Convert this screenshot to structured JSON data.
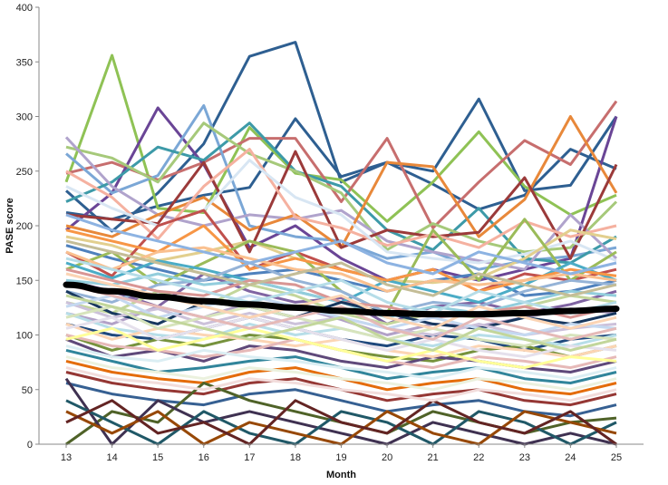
{
  "chart_data": {
    "type": "line",
    "xlabel": "Month",
    "ylabel": "PASE score",
    "ylim": [
      0,
      400
    ],
    "yticks": [
      0,
      50,
      100,
      150,
      200,
      250,
      300,
      350,
      400
    ],
    "categories": [
      "13",
      "14",
      "15",
      "16",
      "17",
      "18",
      "19",
      "20",
      "21",
      "22",
      "23",
      "24",
      "25"
    ],
    "grid": false,
    "legend": "none",
    "trend": {
      "values": [
        146,
        140,
        135,
        131,
        128,
        125,
        122,
        120,
        119,
        119,
        120,
        122,
        124
      ],
      "color": "#000000"
    },
    "series": [
      {
        "color": "#2e5f91",
        "values": [
          232,
          195,
          230,
          275,
          355,
          368,
          240,
          258,
          250,
          316,
          232,
          237,
          300
        ]
      },
      {
        "color": "#2e5f91",
        "values": [
          212,
          206,
          218,
          228,
          235,
          298,
          245,
          258,
          238,
          215,
          228,
          270,
          252
        ]
      },
      {
        "color": "#8fc255",
        "values": [
          240,
          356,
          216,
          212,
          290,
          248,
          242,
          204,
          240,
          286,
          236,
          210,
          228
        ]
      },
      {
        "color": "#c76e6e",
        "values": [
          248,
          258,
          242,
          258,
          280,
          280,
          222,
          280,
          198,
          240,
          278,
          256,
          314
        ]
      },
      {
        "color": "#6a4596",
        "values": [
          196,
          230,
          308,
          256,
          180,
          200,
          170,
          150,
          160,
          150,
          160,
          170,
          300
        ]
      },
      {
        "color": "#7ba7d6",
        "values": [
          266,
          230,
          246,
          310,
          200,
          190,
          186,
          170,
          176,
          160,
          168,
          172,
          180
        ]
      },
      {
        "color": "#3d9aa8",
        "values": [
          222,
          240,
          272,
          260,
          294,
          250,
          236,
          196,
          178,
          216,
          170,
          166,
          190
        ]
      },
      {
        "color": "#a6c97a",
        "values": [
          272,
          262,
          240,
          294,
          266,
          250,
          230,
          178,
          202,
          186,
          176,
          180,
          222
        ]
      },
      {
        "color": "#b0a3cc",
        "values": [
          281,
          236,
          210,
          200,
          210,
          206,
          214,
          186,
          176,
          168,
          160,
          210,
          170
        ]
      },
      {
        "color": "#e8883a",
        "values": [
          200,
          190,
          210,
          226,
          196,
          210,
          180,
          258,
          254,
          190,
          224,
          300,
          230
        ]
      },
      {
        "color": "#9b3a3a",
        "values": [
          210,
          206,
          202,
          258,
          176,
          268,
          180,
          196,
          190,
          194,
          244,
          170,
          256
        ]
      },
      {
        "color": "#f5b1a0",
        "values": [
          250,
          226,
          188,
          236,
          270,
          208,
          198,
          182,
          192,
          180,
          204,
          190,
          200
        ]
      },
      {
        "color": "#d8e6f3",
        "values": [
          236,
          216,
          200,
          214,
          260,
          226,
          210,
          176,
          170,
          166,
          174,
          186,
          168
        ]
      },
      {
        "color": "#e2cf8e",
        "values": [
          190,
          182,
          168,
          176,
          186,
          170,
          160,
          150,
          148,
          152,
          170,
          196,
          188
        ]
      },
      {
        "color": "#c0504d",
        "values": [
          176,
          154,
          200,
          214,
          160,
          176,
          160,
          150,
          160,
          140,
          156,
          150,
          160
        ]
      },
      {
        "color": "#4f81bd",
        "values": [
          182,
          170,
          160,
          150,
          156,
          160,
          150,
          140,
          150,
          156,
          136,
          140,
          150
        ]
      },
      {
        "color": "#9bbb59",
        "values": [
          160,
          176,
          146,
          166,
          186,
          176,
          140,
          120,
          196,
          150,
          206,
          150,
          176
        ]
      },
      {
        "color": "#8064a2",
        "values": [
          150,
          140,
          126,
          156,
          140,
          130,
          134,
          110,
          126,
          130,
          120,
          128,
          140
        ]
      },
      {
        "color": "#4bacc6",
        "values": [
          166,
          152,
          168,
          160,
          150,
          140,
          130,
          150,
          140,
          130,
          146,
          166,
          150
        ]
      },
      {
        "color": "#f79646",
        "values": [
          196,
          186,
          176,
          200,
          160,
          170,
          160,
          150,
          160,
          140,
          150,
          160,
          154
        ]
      },
      {
        "color": "#95b3d7",
        "values": [
          140,
          130,
          146,
          150,
          166,
          150,
          140,
          120,
          130,
          126,
          140,
          150,
          146
        ]
      },
      {
        "color": "#c3d69b",
        "values": [
          130,
          120,
          140,
          126,
          146,
          136,
          120,
          110,
          120,
          116,
          126,
          136,
          130
        ]
      },
      {
        "color": "#b2a1c7",
        "values": [
          120,
          110,
          126,
          116,
          130,
          126,
          114,
          100,
          110,
          108,
          116,
          124,
          120
        ]
      },
      {
        "color": "#92cddc",
        "values": [
          150,
          146,
          156,
          146,
          150,
          140,
          130,
          116,
          126,
          120,
          130,
          140,
          136
        ]
      },
      {
        "color": "#fac08f",
        "values": [
          176,
          160,
          176,
          180,
          170,
          160,
          156,
          140,
          150,
          146,
          150,
          156,
          150
        ]
      },
      {
        "color": "#d99694",
        "values": [
          160,
          150,
          140,
          136,
          150,
          146,
          130,
          126,
          116,
          120,
          126,
          116,
          126
        ]
      },
      {
        "color": "#1f497d",
        "values": [
          110,
          100,
          96,
          106,
          116,
          106,
          96,
          90,
          100,
          96,
          86,
          96,
          100
        ]
      },
      {
        "color": "#76923c",
        "values": [
          100,
          86,
          96,
          90,
          100,
          96,
          86,
          80,
          76,
          86,
          90,
          80,
          90
        ]
      },
      {
        "color": "#5f497a",
        "values": [
          96,
          80,
          86,
          76,
          90,
          86,
          76,
          70,
          80,
          76,
          70,
          66,
          76
        ]
      },
      {
        "color": "#31859b",
        "values": [
          86,
          76,
          66,
          70,
          76,
          80,
          70,
          60,
          66,
          70,
          60,
          56,
          66
        ]
      },
      {
        "color": "#e46c0a",
        "values": [
          76,
          66,
          60,
          56,
          66,
          70,
          60,
          50,
          56,
          60,
          50,
          46,
          56
        ]
      },
      {
        "color": "#953734",
        "values": [
          66,
          56,
          50,
          46,
          56,
          60,
          50,
          40,
          46,
          50,
          40,
          36,
          46
        ]
      },
      {
        "color": "#366092",
        "values": [
          56,
          46,
          40,
          36,
          46,
          50,
          40,
          30,
          36,
          40,
          30,
          26,
          36
        ]
      },
      {
        "color": "#4f6228",
        "values": [
          0,
          30,
          20,
          56,
          40,
          30,
          20,
          10,
          30,
          20,
          10,
          20,
          24
        ]
      },
      {
        "color": "#3f3151",
        "values": [
          60,
          0,
          40,
          20,
          30,
          20,
          10,
          0,
          20,
          10,
          0,
          10,
          0
        ]
      },
      {
        "color": "#205867",
        "values": [
          40,
          20,
          0,
          30,
          10,
          0,
          30,
          20,
          0,
          30,
          20,
          0,
          20
        ]
      },
      {
        "color": "#974806",
        "values": [
          30,
          10,
          30,
          0,
          20,
          10,
          0,
          30,
          10,
          0,
          30,
          20,
          10
        ]
      },
      {
        "color": "#632423",
        "values": [
          20,
          40,
          10,
          20,
          0,
          40,
          20,
          10,
          40,
          20,
          10,
          30,
          0
        ]
      },
      {
        "color": "#17375e",
        "values": [
          140,
          120,
          110,
          130,
          126,
          116,
          130,
          120,
          110,
          106,
          116,
          110,
          120
        ]
      },
      {
        "color": "#ccc1da",
        "values": [
          130,
          116,
          124,
          110,
          120,
          110,
          116,
          106,
          100,
          110,
          100,
          106,
          110
        ]
      },
      {
        "color": "#b7dee8",
        "values": [
          120,
          106,
          100,
          96,
          110,
          100,
          106,
          96,
          90,
          100,
          96,
          90,
          100
        ]
      },
      {
        "color": "#fcd5b4",
        "values": [
          110,
          96,
          106,
          100,
          96,
          90,
          96,
          86,
          80,
          90,
          86,
          80,
          90
        ]
      },
      {
        "color": "#e6b9b8",
        "values": [
          100,
          90,
          86,
          80,
          86,
          96,
          86,
          76,
          70,
          80,
          76,
          70,
          80
        ]
      },
      {
        "color": "#dbeef3",
        "values": [
          90,
          80,
          76,
          86,
          80,
          76,
          70,
          66,
          60,
          70,
          66,
          60,
          70
        ]
      },
      {
        "color": "#ebf1de",
        "values": [
          80,
          70,
          66,
          60,
          70,
          66,
          60,
          56,
          50,
          60,
          56,
          50,
          60
        ]
      },
      {
        "color": "#f2dcdb",
        "values": [
          70,
          60,
          56,
          50,
          60,
          56,
          50,
          46,
          40,
          50,
          46,
          40,
          50
        ]
      },
      {
        "color": "#c5d9f1",
        "values": [
          126,
          136,
          116,
          126,
          136,
          126,
          116,
          106,
          116,
          106,
          100,
          110,
          106
        ]
      },
      {
        "color": "#d7e4bc",
        "values": [
          116,
          126,
          106,
          116,
          126,
          116,
          106,
          96,
          106,
          96,
          90,
          100,
          96
        ]
      },
      {
        "color": "#e5e0ec",
        "values": [
          106,
          116,
          96,
          106,
          116,
          106,
          96,
          86,
          96,
          86,
          80,
          90,
          86
        ]
      },
      {
        "color": "#ffff99",
        "values": [
          96,
          106,
          86,
          96,
          106,
          96,
          86,
          76,
          86,
          76,
          70,
          80,
          76
        ]
      },
      {
        "color": "#8db3e2",
        "values": [
          210,
          196,
          186,
          176,
          166,
          176,
          186,
          166,
          156,
          176,
          166,
          156,
          166
        ]
      },
      {
        "color": "#c4bd97",
        "values": [
          186,
          176,
          166,
          156,
          146,
          156,
          166,
          146,
          136,
          156,
          146,
          136,
          146
        ]
      },
      {
        "color": "#b6dde8",
        "values": [
          170,
          160,
          150,
          140,
          130,
          140,
          150,
          130,
          120,
          140,
          130,
          120,
          130
        ]
      },
      {
        "color": "#fbd4b4",
        "values": [
          156,
          146,
          136,
          126,
          116,
          126,
          136,
          116,
          106,
          126,
          116,
          106,
          116
        ]
      },
      {
        "color": "#e5b9b7",
        "values": [
          146,
          136,
          126,
          116,
          106,
          116,
          126,
          106,
          96,
          116,
          106,
          96,
          106
        ]
      },
      {
        "color": "#c2d69b",
        "values": [
          136,
          126,
          116,
          106,
          96,
          106,
          116,
          96,
          86,
          106,
          96,
          86,
          96
        ]
      }
    ]
  }
}
